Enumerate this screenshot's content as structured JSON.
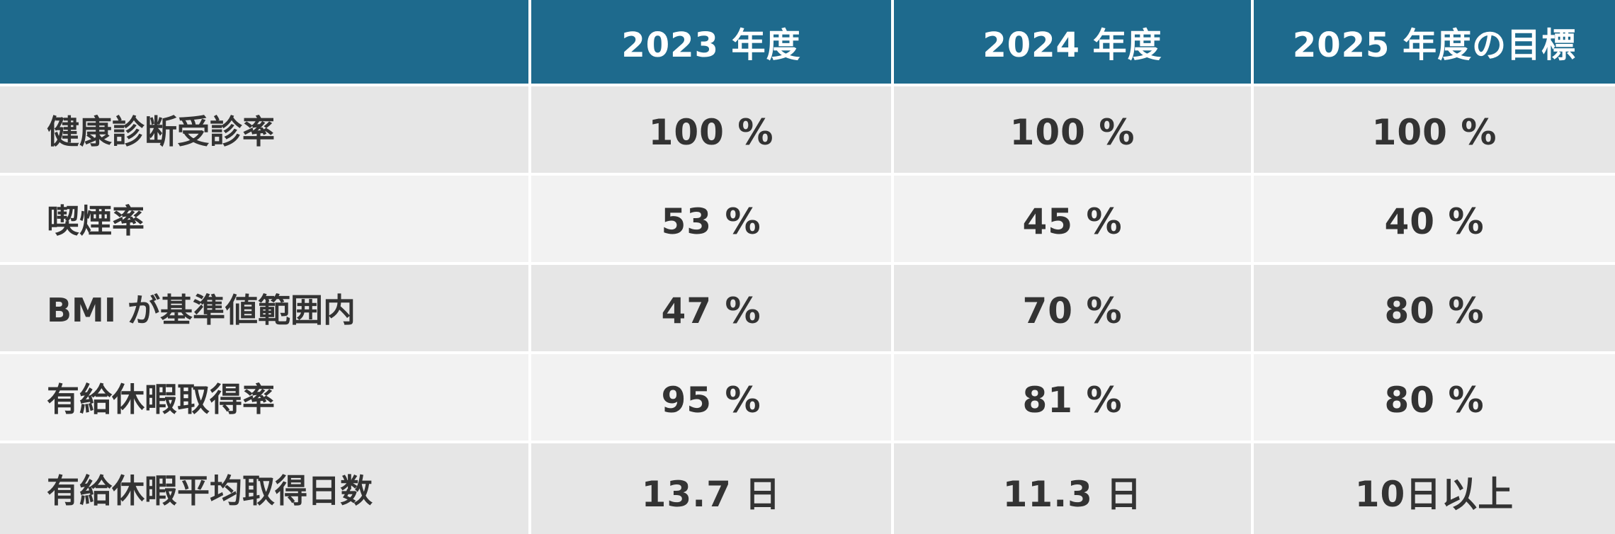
{
  "table": {
    "headers": [
      "",
      "2023 年度",
      "2024 年度",
      "2025 年度の目標"
    ],
    "rows": [
      {
        "label": "健康診断受診率",
        "values": [
          "100 %",
          "100 %",
          "100 %"
        ]
      },
      {
        "label": "喫煙率",
        "values": [
          "53 %",
          "45 %",
          "40 %"
        ]
      },
      {
        "label": "BMI が基準値範囲内",
        "values": [
          "47 %",
          "70 %",
          "80 %"
        ]
      },
      {
        "label": "有給休暇取得率",
        "values": [
          "95 %",
          "81 %",
          "80 %"
        ]
      },
      {
        "label": "有給休暇平均取得日数",
        "values": [
          "13.7 日",
          "11.3 日",
          "10日以上"
        ]
      }
    ]
  },
  "colors": {
    "header_bg": "#1e6a8d",
    "header_text": "#ffffff",
    "row_dark": "#e6e6e6",
    "row_light": "#f2f2f2",
    "body_text": "#333333"
  }
}
